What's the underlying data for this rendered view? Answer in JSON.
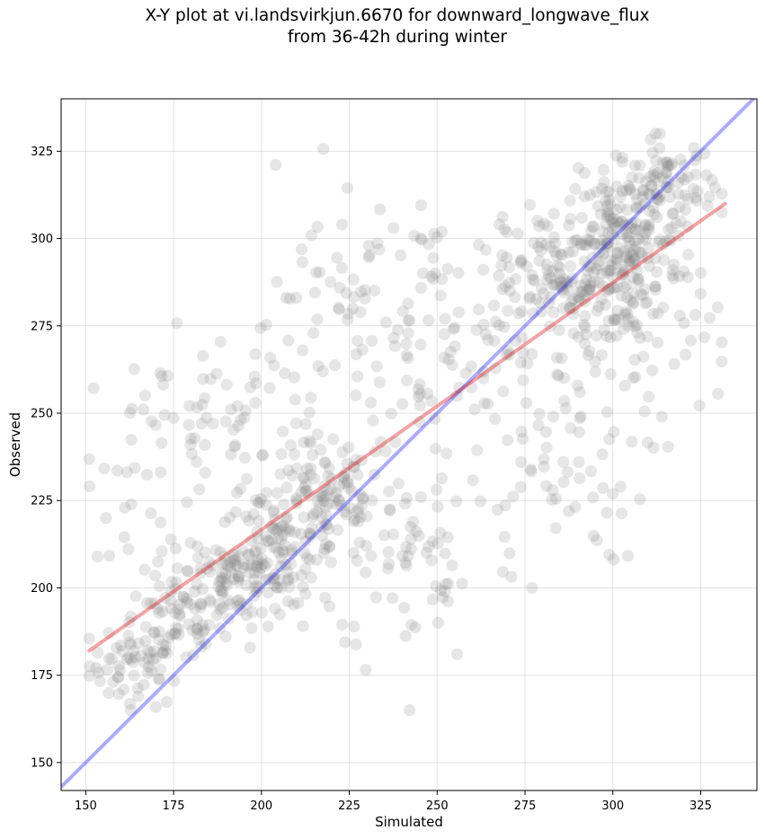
{
  "chart_data": {
    "type": "scatter",
    "title": "X-Y plot at vi.landsvirkjun.6670 for downward_longwave_flux",
    "subtitle": "from 36-42h during winter",
    "xlabel": "Simulated",
    "ylabel": "Observed",
    "xlim": [
      143,
      341
    ],
    "ylim": [
      142,
      340
    ],
    "xticks": [
      150,
      175,
      200,
      225,
      250,
      275,
      300,
      325
    ],
    "yticks": [
      150,
      175,
      200,
      225,
      250,
      275,
      300,
      325
    ],
    "grid": true,
    "colors": {
      "points": "#808080",
      "identity": "#0000ff",
      "regression": "#e41a1c"
    },
    "identity_line": {
      "x": [
        143,
        341
      ],
      "y": [
        143,
        341
      ]
    },
    "regression_line": {
      "x": [
        151,
        332
      ],
      "y": [
        182,
        310
      ]
    },
    "series": [
      {
        "clusters": [
          {
            "cx": 165,
            "cy": 178,
            "sx": 7,
            "sy": 6,
            "n": 60
          },
          {
            "cx": 175,
            "cy": 190,
            "sx": 7,
            "sy": 7,
            "n": 60
          },
          {
            "cx": 190,
            "cy": 203,
            "sx": 8,
            "sy": 7,
            "n": 90
          },
          {
            "cx": 205,
            "cy": 210,
            "sx": 8,
            "sy": 8,
            "n": 110
          },
          {
            "cx": 218,
            "cy": 225,
            "sx": 9,
            "sy": 9,
            "n": 90
          },
          {
            "cx": 195,
            "cy": 245,
            "sx": 15,
            "sy": 12,
            "n": 70
          },
          {
            "cx": 170,
            "cy": 240,
            "sx": 10,
            "sy": 15,
            "n": 30
          },
          {
            "cx": 240,
            "cy": 265,
            "sx": 18,
            "sy": 22,
            "n": 90
          },
          {
            "cx": 245,
            "cy": 210,
            "sx": 15,
            "sy": 16,
            "n": 70
          },
          {
            "cx": 270,
            "cy": 280,
            "sx": 15,
            "sy": 14,
            "n": 70
          },
          {
            "cx": 285,
            "cy": 235,
            "sx": 13,
            "sy": 14,
            "n": 60
          },
          {
            "cx": 290,
            "cy": 288,
            "sx": 10,
            "sy": 10,
            "n": 140
          },
          {
            "cx": 303,
            "cy": 300,
            "sx": 8,
            "sy": 9,
            "n": 140
          },
          {
            "cx": 315,
            "cy": 315,
            "sx": 7,
            "sy": 7,
            "n": 90
          },
          {
            "cx": 310,
            "cy": 275,
            "sx": 10,
            "sy": 14,
            "n": 60
          },
          {
            "cx": 225,
            "cy": 285,
            "sx": 18,
            "sy": 15,
            "n": 40
          }
        ]
      }
    ]
  }
}
